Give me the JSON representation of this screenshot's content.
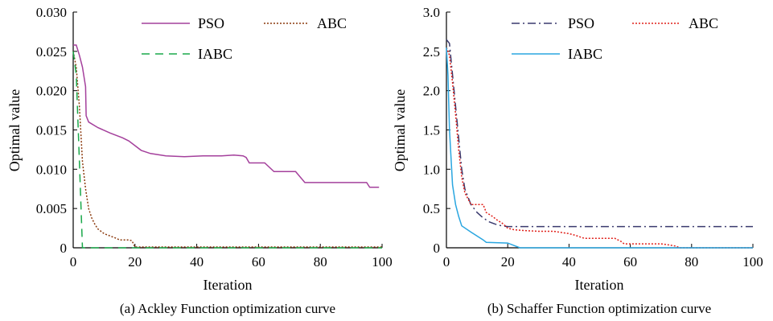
{
  "chart_data": [
    {
      "type": "line",
      "title": "",
      "caption": "(a) Ackley Function optimization curve",
      "xlabel": "Iteration",
      "ylabel": "Optimal value",
      "xlim": [
        0,
        100
      ],
      "ylim": [
        0,
        0.03
      ],
      "xticks": [
        0,
        20,
        40,
        60,
        80,
        100
      ],
      "xtick_labels": [
        "0",
        "20",
        "40",
        "60",
        "80",
        "100"
      ],
      "yticks": [
        0,
        0.005,
        0.01,
        0.015,
        0.02,
        0.025,
        0.03
      ],
      "ytick_labels": [
        "0",
        "0.005",
        "0.010",
        "0.015",
        "0.020",
        "0.025",
        "0.030"
      ],
      "grid": false,
      "legend": "top-right",
      "series": [
        {
          "name": "PSO",
          "color": "#a4409c",
          "dash": "solid",
          "x": [
            0,
            1,
            2,
            3,
            4,
            4.2,
            5,
            8,
            12,
            16,
            18,
            20,
            22,
            25,
            30,
            36,
            42,
            48,
            52,
            55,
            56,
            57,
            62,
            65,
            72,
            75,
            85,
            95,
            96,
            99
          ],
          "y": [
            0.0258,
            0.0258,
            0.0245,
            0.023,
            0.0205,
            0.0168,
            0.016,
            0.0153,
            0.0146,
            0.014,
            0.0136,
            0.013,
            0.0124,
            0.012,
            0.0117,
            0.0116,
            0.0117,
            0.0117,
            0.0118,
            0.0117,
            0.0115,
            0.0108,
            0.0108,
            0.0097,
            0.0097,
            0.0083,
            0.0083,
            0.0083,
            0.0077,
            0.0077
          ]
        },
        {
          "name": "ABC",
          "color": "#8b3a0e",
          "dash": "dotted",
          "x": [
            0,
            1,
            2,
            3,
            4,
            5,
            6,
            7,
            8,
            10,
            12,
            14,
            15,
            18,
            19,
            20,
            100
          ],
          "y": [
            0.025,
            0.023,
            0.018,
            0.011,
            0.0075,
            0.005,
            0.0038,
            0.003,
            0.0024,
            0.0018,
            0.0015,
            0.0012,
            0.001,
            0.001,
            0.0009,
            0.0001,
            0.0001
          ]
        },
        {
          "name": "IABC",
          "color": "#1aa84a",
          "dash": "dashed",
          "x": [
            0,
            1,
            2,
            3,
            100
          ],
          "y": [
            0.025,
            0.022,
            0.011,
            0.0,
            0.0
          ]
        }
      ]
    },
    {
      "type": "line",
      "title": "",
      "caption": "(b) Schaffer Function optimization curve",
      "xlabel": "Iteration",
      "ylabel": "Optimal value",
      "xlim": [
        0,
        100
      ],
      "ylim": [
        0,
        3.0
      ],
      "xticks": [
        0,
        20,
        40,
        60,
        80,
        100
      ],
      "xtick_labels": [
        "0",
        "20",
        "40",
        "60",
        "80",
        "100"
      ],
      "yticks": [
        0,
        0.5,
        1.0,
        1.5,
        2.0,
        2.5,
        3.0
      ],
      "ytick_labels": [
        "0",
        "0.5",
        "1.0",
        "1.5",
        "2.0",
        "2.5",
        "3.0"
      ],
      "grid": false,
      "legend": "top-right",
      "series": [
        {
          "name": "PSO",
          "color": "#3a3a6e",
          "dash": "dashdot",
          "x": [
            0,
            1,
            2,
            3,
            4,
            5,
            6,
            8,
            10,
            12,
            14,
            16,
            18,
            20,
            22,
            100
          ],
          "y": [
            2.65,
            2.6,
            2.2,
            1.8,
            1.4,
            1.0,
            0.75,
            0.55,
            0.45,
            0.38,
            0.33,
            0.3,
            0.28,
            0.27,
            0.27,
            0.27
          ]
        },
        {
          "name": "ABC",
          "color": "#e0201a",
          "dash": "dotted",
          "x": [
            0,
            1,
            2,
            3,
            4,
            5,
            6,
            8,
            9,
            12,
            13,
            15,
            17,
            18,
            20,
            22,
            25,
            30,
            35,
            40,
            42,
            45,
            55,
            57,
            58,
            70,
            72,
            75,
            76,
            100
          ],
          "y": [
            2.55,
            2.45,
            2.1,
            1.7,
            1.25,
            0.9,
            0.7,
            0.55,
            0.55,
            0.55,
            0.45,
            0.4,
            0.34,
            0.32,
            0.25,
            0.23,
            0.22,
            0.21,
            0.21,
            0.18,
            0.16,
            0.12,
            0.12,
            0.08,
            0.05,
            0.05,
            0.04,
            0.02,
            0.0,
            0.0
          ]
        },
        {
          "name": "IABC",
          "color": "#2aa6e0",
          "dash": "solid",
          "x": [
            0,
            0.5,
            1,
            2,
            3,
            4,
            5,
            8,
            12,
            13,
            20,
            22,
            24,
            100
          ],
          "y": [
            2.55,
            2.2,
            1.5,
            0.8,
            0.55,
            0.4,
            0.28,
            0.2,
            0.1,
            0.07,
            0.06,
            0.03,
            0.0,
            0.0
          ]
        }
      ]
    }
  ]
}
